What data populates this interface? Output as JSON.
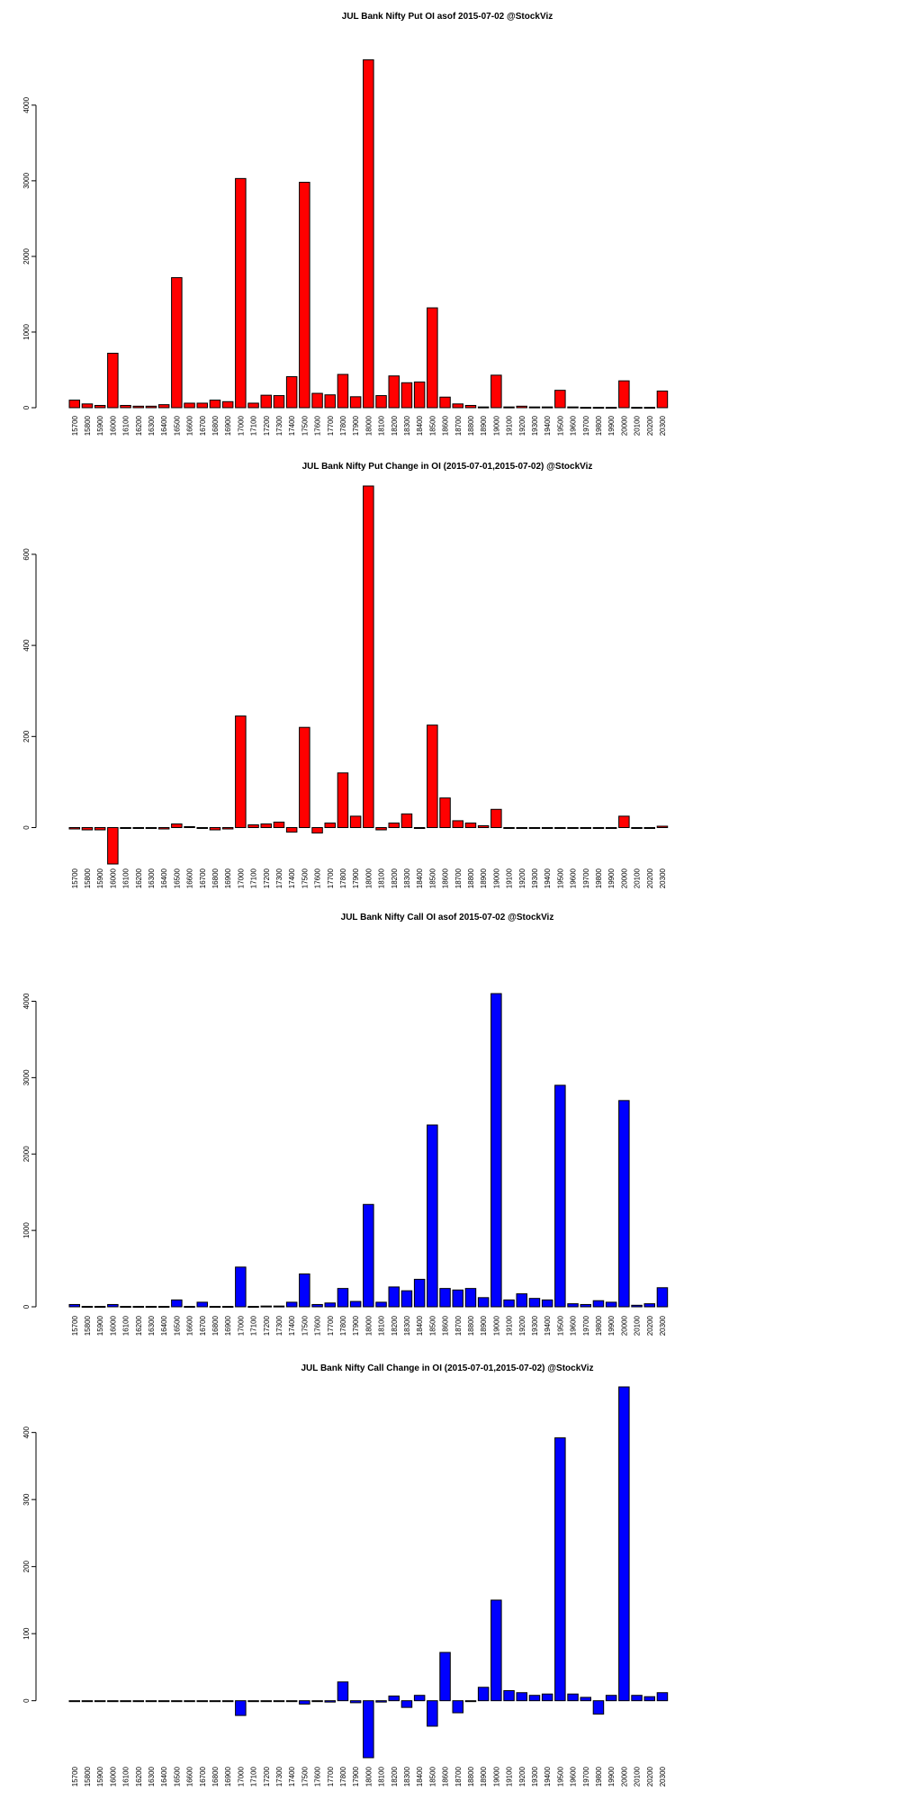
{
  "chart_data": [
    {
      "type": "bar",
      "title": "JUL Bank Nifty Put OI asof 2015-07-02 @StockViz",
      "color": "#ff0000",
      "categories": [
        "15700",
        "15800",
        "15900",
        "16000",
        "16100",
        "16200",
        "16300",
        "16400",
        "16500",
        "16600",
        "16700",
        "16800",
        "16900",
        "17000",
        "17100",
        "17200",
        "17300",
        "17400",
        "17500",
        "17600",
        "17700",
        "17800",
        "17900",
        "18000",
        "18100",
        "18200",
        "18300",
        "18400",
        "18500",
        "18600",
        "18700",
        "18800",
        "18900",
        "19000",
        "19100",
        "19200",
        "19300",
        "19400",
        "19500",
        "19600",
        "19700",
        "19800",
        "19900",
        "20000",
        "20100",
        "20200",
        "20300"
      ],
      "values": [
        100,
        50,
        30,
        720,
        30,
        20,
        20,
        40,
        1720,
        60,
        60,
        100,
        80,
        3030,
        60,
        165,
        160,
        410,
        2980,
        190,
        170,
        440,
        145,
        4600,
        160,
        420,
        330,
        340,
        1320,
        140,
        50,
        30,
        10,
        430,
        10,
        20,
        10,
        10,
        230,
        10,
        5,
        5,
        5,
        355,
        5,
        5,
        220
      ],
      "yticks": [
        0,
        1000,
        2000,
        3000,
        4000
      ],
      "ylim": [
        0,
        4700
      ],
      "xlabel": "",
      "ylabel": ""
    },
    {
      "type": "bar",
      "title": "JUL Bank Nifty Put Change in OI (2015-07-01,2015-07-02) @StockViz",
      "color": "#ff0000",
      "categories": [
        "15700",
        "15800",
        "15900",
        "16000",
        "16100",
        "16200",
        "16300",
        "16400",
        "16500",
        "16600",
        "16700",
        "16800",
        "16900",
        "17000",
        "17100",
        "17200",
        "17300",
        "17400",
        "17500",
        "17600",
        "17700",
        "17800",
        "17900",
        "18000",
        "18100",
        "18200",
        "18300",
        "18400",
        "18500",
        "18600",
        "18700",
        "18800",
        "18900",
        "19000",
        "19100",
        "19200",
        "19300",
        "19400",
        "19500",
        "19600",
        "19700",
        "19800",
        "19900",
        "20000",
        "20100",
        "20200",
        "20300"
      ],
      "values": [
        -3,
        -5,
        -5,
        -80,
        -1,
        -1,
        -1,
        -3,
        8,
        2,
        -1,
        -5,
        -3,
        245,
        6,
        8,
        12,
        -10,
        220,
        -12,
        10,
        120,
        25,
        750,
        -5,
        10,
        30,
        -1,
        225,
        65,
        15,
        10,
        4,
        40,
        -1,
        -1,
        -1,
        -1,
        -1,
        -1,
        -1,
        -1,
        -1,
        25,
        -1,
        -1,
        3
      ],
      "yticks": [
        0,
        200,
        400,
        600
      ],
      "ylim": [
        -80,
        750
      ],
      "xlabel": "",
      "ylabel": ""
    },
    {
      "type": "bar",
      "title": "JUL Bank Nifty Call OI asof 2015-07-02 @StockViz",
      "color": "#0000ff",
      "categories": [
        "15700",
        "15800",
        "15900",
        "16000",
        "16100",
        "16200",
        "16300",
        "16400",
        "16500",
        "16600",
        "16700",
        "16800",
        "16900",
        "17000",
        "17100",
        "17200",
        "17300",
        "17400",
        "17500",
        "17600",
        "17700",
        "17800",
        "17900",
        "18000",
        "18100",
        "18200",
        "18300",
        "18400",
        "18500",
        "18600",
        "18700",
        "18800",
        "18900",
        "19000",
        "19100",
        "19200",
        "19300",
        "19400",
        "19500",
        "19600",
        "19700",
        "19800",
        "19900",
        "20000",
        "20100",
        "20200",
        "20300"
      ],
      "values": [
        30,
        5,
        5,
        30,
        5,
        5,
        5,
        5,
        90,
        5,
        60,
        5,
        5,
        520,
        5,
        10,
        10,
        60,
        430,
        30,
        50,
        240,
        70,
        1340,
        60,
        260,
        210,
        360,
        2380,
        240,
        220,
        240,
        120,
        4100,
        90,
        170,
        110,
        90,
        2900,
        40,
        30,
        80,
        60,
        2700,
        20,
        40,
        250
      ],
      "yticks": [
        0,
        1000,
        2000,
        3000,
        4000
      ],
      "ylim": [
        0,
        4100
      ],
      "xlabel": "",
      "ylabel": ""
    },
    {
      "type": "bar",
      "title": "JUL Bank Nifty Call Change in OI (2015-07-01,2015-07-02) @StockViz",
      "color": "#0000ff",
      "categories": [
        "15700",
        "15800",
        "15900",
        "16000",
        "16100",
        "16200",
        "16300",
        "16400",
        "16500",
        "16600",
        "16700",
        "16800",
        "16900",
        "17000",
        "17100",
        "17200",
        "17300",
        "17400",
        "17500",
        "17600",
        "17700",
        "17800",
        "17900",
        "18000",
        "18100",
        "18200",
        "18300",
        "18400",
        "18500",
        "18600",
        "18700",
        "18800",
        "18900",
        "19000",
        "19100",
        "19200",
        "19300",
        "19400",
        "19500",
        "19600",
        "19700",
        "19800",
        "19900",
        "20000",
        "20100",
        "20200",
        "20300"
      ],
      "values": [
        0,
        0,
        0,
        0,
        0,
        0,
        0,
        0,
        0,
        0,
        0,
        0,
        0,
        -22,
        0,
        0,
        0,
        0,
        -5,
        0,
        -2,
        28,
        -3,
        -85,
        -2,
        7,
        -10,
        8,
        -38,
        72,
        -18,
        0,
        20,
        150,
        15,
        12,
        8,
        10,
        392,
        10,
        5,
        -20,
        8,
        468,
        8,
        6,
        12
      ],
      "yticks": [
        0,
        100,
        200,
        300,
        400
      ],
      "ylim": [
        -85,
        468
      ],
      "xlabel": "",
      "ylabel": ""
    }
  ]
}
